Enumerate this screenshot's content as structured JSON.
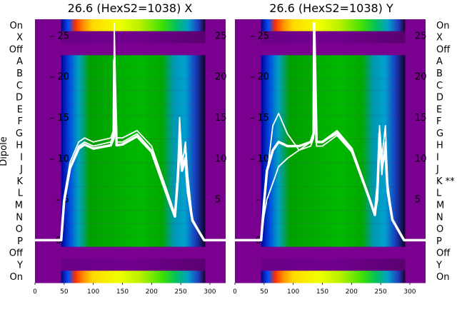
{
  "chart_data": [
    {
      "type": "heatmap",
      "title": "26.6 (HexS2=1038) X",
      "ylabel": "Dipole",
      "categories": [
        "On",
        "X",
        "Off",
        "A",
        "B",
        "C",
        "D",
        "E",
        "F",
        "G",
        "H",
        "I",
        "J",
        "K",
        "L",
        "M",
        "N",
        "O",
        "P",
        "Off",
        "Y",
        "On"
      ],
      "x_ticks": [
        0,
        50,
        100,
        150,
        200,
        250,
        300
      ],
      "xlim": [
        0,
        327
      ],
      "overlay_y_ticks": [
        5,
        10,
        15,
        20,
        25
      ],
      "overlay_ylim": [
        -5.2,
        27
      ],
      "spectrum_range": [
        45,
        292
      ],
      "colormap": "nipy_spectral",
      "overlay_lines": [
        {
          "x": [
            0,
            40,
            45,
            50,
            60,
            75,
            85,
            100,
            130,
            135,
            136,
            140,
            150,
            175,
            200,
            230,
            240,
            245,
            248,
            252,
            258,
            262,
            270,
            290,
            310,
            327
          ],
          "y": [
            0,
            0,
            0,
            5,
            9,
            11.5,
            12,
            11.5,
            12,
            13,
            26.5,
            12,
            12,
            13,
            11,
            5,
            3,
            8,
            14,
            9,
            12,
            8,
            2.5,
            0,
            0,
            0
          ]
        },
        {
          "x": [
            0,
            40,
            45,
            50,
            60,
            75,
            85,
            100,
            130,
            135,
            136,
            140,
            150,
            175,
            200,
            230,
            240,
            245,
            248,
            252,
            258,
            262,
            270,
            290,
            310,
            327
          ],
          "y": [
            0,
            0,
            0,
            5.3,
            9.5,
            12,
            12.5,
            12,
            12.5,
            13.5,
            24,
            12.5,
            12.5,
            13.4,
            11.5,
            5.3,
            3.2,
            9,
            15,
            10,
            11,
            7,
            2.6,
            0,
            0,
            0
          ]
        },
        {
          "x": [
            0,
            40,
            45,
            50,
            60,
            75,
            85,
            100,
            130,
            135,
            136,
            140,
            150,
            175,
            200,
            230,
            240,
            245,
            248,
            252,
            258,
            262,
            270,
            290,
            310,
            327
          ],
          "y": [
            0,
            0,
            0,
            4.8,
            8.8,
            11.2,
            11.7,
            11.2,
            11.6,
            12.5,
            22,
            11.6,
            11.7,
            12.7,
            10.8,
            4.8,
            2.9,
            7.5,
            12,
            8.5,
            10,
            6,
            2.4,
            0,
            0,
            0
          ]
        }
      ]
    },
    {
      "type": "heatmap",
      "title": "26.6 (HexS2=1038) Y",
      "categories": [
        "On",
        "X",
        "Off",
        "A",
        "B",
        "C",
        "D",
        "E",
        "F",
        "G",
        "H",
        "I",
        "J",
        "K **",
        "L",
        "M",
        "N",
        "O",
        "P",
        "Off",
        "Y",
        "On"
      ],
      "x_ticks": [
        0,
        50,
        100,
        150,
        200,
        250,
        300
      ],
      "xlim": [
        0,
        327
      ],
      "overlay_y_ticks": [
        5,
        10,
        15,
        20,
        25
      ],
      "overlay_ylim": [
        -5.2,
        27
      ],
      "spectrum_range": [
        45,
        292
      ],
      "colormap": "nipy_spectral",
      "overlay_lines": [
        {
          "x": [
            0,
            40,
            45,
            50,
            55,
            65,
            75,
            90,
            110,
            130,
            135,
            136,
            140,
            150,
            175,
            200,
            230,
            240,
            245,
            248,
            252,
            258,
            262,
            270,
            290,
            310,
            327
          ],
          "y": [
            0,
            0,
            0,
            3,
            5,
            7,
            9,
            10,
            11,
            12,
            13,
            20,
            12,
            12,
            13,
            11,
            5,
            3,
            5,
            12,
            8,
            12,
            6,
            2.5,
            0,
            0,
            0
          ]
        },
        {
          "x": [
            0,
            40,
            45,
            50,
            55,
            65,
            75,
            90,
            110,
            130,
            135,
            136,
            140,
            150,
            175,
            200,
            230,
            240,
            245,
            248,
            252,
            258,
            262,
            270,
            290,
            310,
            327
          ],
          "y": [
            0,
            0,
            0,
            4,
            8,
            14,
            15.5,
            13,
            11,
            11.5,
            12.5,
            18,
            11.5,
            11.5,
            12.8,
            10.8,
            5,
            3,
            6,
            14,
            10,
            14,
            7,
            2.6,
            0,
            0,
            0
          ]
        },
        {
          "x": [
            0,
            40,
            45,
            50,
            55,
            65,
            75,
            90,
            110,
            130,
            135,
            136,
            140,
            150,
            175,
            200,
            230,
            240,
            245,
            248,
            252,
            258,
            262,
            270,
            290,
            310,
            327
          ],
          "y": [
            0,
            0,
            0,
            4.6,
            8.5,
            11,
            12,
            11.5,
            11.5,
            12,
            13,
            26.5,
            12,
            12,
            13.3,
            11.2,
            5.2,
            3.1,
            7,
            13,
            9,
            11,
            6,
            2.5,
            0,
            0,
            0
          ]
        }
      ]
    }
  ]
}
